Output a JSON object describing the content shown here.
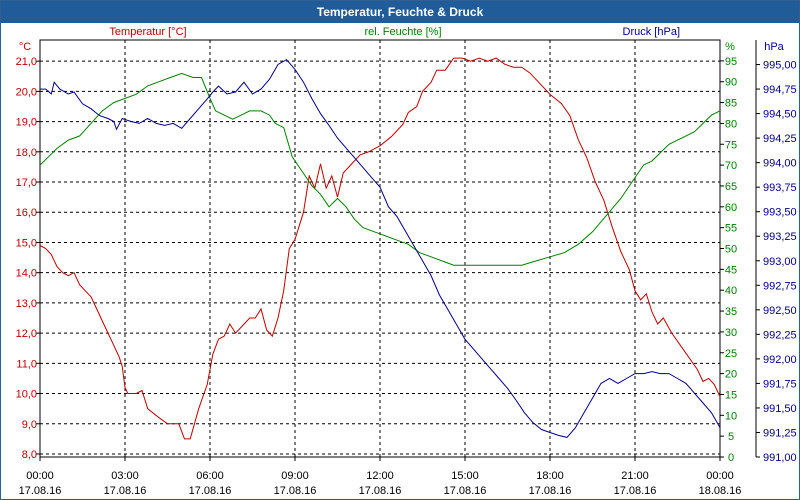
{
  "window": {
    "title": "Temperatur, Feuchte & Druck"
  },
  "chart_data": {
    "type": "line",
    "title": "Temperatur, Feuchte & Druck",
    "x": {
      "range_hours": [
        0,
        24
      ],
      "ticks": [
        {
          "h": 0,
          "time": "00:00",
          "date": "17.08.16"
        },
        {
          "h": 3,
          "time": "03:00",
          "date": "17.08.16"
        },
        {
          "h": 6,
          "time": "06:00",
          "date": "17.08.16"
        },
        {
          "h": 9,
          "time": "09:00",
          "date": "17.08.16"
        },
        {
          "h": 12,
          "time": "12:00",
          "date": "17.08.16"
        },
        {
          "h": 15,
          "time": "15:00",
          "date": "17.08.16"
        },
        {
          "h": 18,
          "time": "18:00",
          "date": "17.08.16"
        },
        {
          "h": 21,
          "time": "21:00",
          "date": "17.08.16"
        },
        {
          "h": 24,
          "time": "00:00",
          "date": "18.08.16"
        }
      ]
    },
    "axes": {
      "temperature": {
        "unit": "°C",
        "range": [
          7.9,
          21.7
        ],
        "color": "#c00000",
        "tick_labels": [
          "8,0",
          "9,0",
          "10,0",
          "11,0",
          "12,0",
          "13,0",
          "14,0",
          "15,0",
          "16,0",
          "17,0",
          "18,0",
          "19,0",
          "20,0",
          "21,0"
        ]
      },
      "humidity": {
        "unit": "%",
        "range": [
          0,
          100
        ],
        "color": "#008000",
        "tick_labels": [
          "0",
          "5",
          "10",
          "15",
          "20",
          "25",
          "30",
          "35",
          "40",
          "45",
          "50",
          "55",
          "60",
          "65",
          "70",
          "75",
          "80",
          "85",
          "90",
          "95"
        ]
      },
      "pressure": {
        "unit": "hPa",
        "range": [
          991.0,
          995.25
        ],
        "color": "#00008b",
        "tick_labels": [
          "991,00",
          "991,25",
          "991,50",
          "991,75",
          "992,00",
          "992,25",
          "992,50",
          "992,75",
          "993,00",
          "993,25",
          "993,50",
          "993,75",
          "994,00",
          "994,25",
          "994,50",
          "994,75",
          "995,00"
        ]
      }
    },
    "legend": [
      {
        "name": "Temperatur [°C]",
        "color": "#c00000"
      },
      {
        "name": "rel. Feuchte [%]",
        "color": "#008000"
      },
      {
        "name": "Druck [hPa]",
        "color": "#00008b"
      }
    ],
    "series": [
      {
        "name": "Temperatur",
        "axis": "temperature",
        "color": "#c00000",
        "points": [
          [
            0,
            14.9
          ],
          [
            0.2,
            14.8
          ],
          [
            0.4,
            14.6
          ],
          [
            0.6,
            14.2
          ],
          [
            0.8,
            14.0
          ],
          [
            1.0,
            13.9
          ],
          [
            1.2,
            14.0
          ],
          [
            1.4,
            13.6
          ],
          [
            1.6,
            13.4
          ],
          [
            1.8,
            13.2
          ],
          [
            2.0,
            12.8
          ],
          [
            2.2,
            12.4
          ],
          [
            2.4,
            12.0
          ],
          [
            2.6,
            11.6
          ],
          [
            2.8,
            11.2
          ],
          [
            2.9,
            10.9
          ],
          [
            3.0,
            10.2
          ],
          [
            3.1,
            10.0
          ],
          [
            3.4,
            10.0
          ],
          [
            3.6,
            10.1
          ],
          [
            3.8,
            9.5
          ],
          [
            4.2,
            9.2
          ],
          [
            4.5,
            9.0
          ],
          [
            4.9,
            9.0
          ],
          [
            5.1,
            8.5
          ],
          [
            5.3,
            8.5
          ],
          [
            5.6,
            9.5
          ],
          [
            5.9,
            10.3
          ],
          [
            6.1,
            11.3
          ],
          [
            6.3,
            11.8
          ],
          [
            6.5,
            11.9
          ],
          [
            6.7,
            12.3
          ],
          [
            6.9,
            12.0
          ],
          [
            7.1,
            12.2
          ],
          [
            7.4,
            12.5
          ],
          [
            7.6,
            12.5
          ],
          [
            7.8,
            12.8
          ],
          [
            8.0,
            12.1
          ],
          [
            8.2,
            11.9
          ],
          [
            8.4,
            12.5
          ],
          [
            8.6,
            13.4
          ],
          [
            8.8,
            14.8
          ],
          [
            9.0,
            15.1
          ],
          [
            9.3,
            16.0
          ],
          [
            9.5,
            17.2
          ],
          [
            9.7,
            16.8
          ],
          [
            9.9,
            17.6
          ],
          [
            10.1,
            16.8
          ],
          [
            10.3,
            17.2
          ],
          [
            10.5,
            16.5
          ],
          [
            10.7,
            17.3
          ],
          [
            11.0,
            17.6
          ],
          [
            11.3,
            17.9
          ],
          [
            11.6,
            18.0
          ],
          [
            12.0,
            18.2
          ],
          [
            12.4,
            18.5
          ],
          [
            12.8,
            18.9
          ],
          [
            13.0,
            19.3
          ],
          [
            13.3,
            19.5
          ],
          [
            13.5,
            20.0
          ],
          [
            13.8,
            20.3
          ],
          [
            14.0,
            20.7
          ],
          [
            14.3,
            20.7
          ],
          [
            14.6,
            21.1
          ],
          [
            14.9,
            21.1
          ],
          [
            15.2,
            21.0
          ],
          [
            15.5,
            21.1
          ],
          [
            15.8,
            21.0
          ],
          [
            16.1,
            21.1
          ],
          [
            16.4,
            20.9
          ],
          [
            16.7,
            20.8
          ],
          [
            17.0,
            20.8
          ],
          [
            17.3,
            20.6
          ],
          [
            17.6,
            20.3
          ],
          [
            18.0,
            19.9
          ],
          [
            18.4,
            19.6
          ],
          [
            18.7,
            19.2
          ],
          [
            19.0,
            18.4
          ],
          [
            19.3,
            17.8
          ],
          [
            19.6,
            17.0
          ],
          [
            19.9,
            16.4
          ],
          [
            20.2,
            15.5
          ],
          [
            20.5,
            14.7
          ],
          [
            20.8,
            14.1
          ],
          [
            21.0,
            13.4
          ],
          [
            21.2,
            13.1
          ],
          [
            21.4,
            13.3
          ],
          [
            21.6,
            12.7
          ],
          [
            21.8,
            12.3
          ],
          [
            22.0,
            12.5
          ],
          [
            22.3,
            12.0
          ],
          [
            22.6,
            11.6
          ],
          [
            22.9,
            11.2
          ],
          [
            23.2,
            10.8
          ],
          [
            23.4,
            10.4
          ],
          [
            23.6,
            10.5
          ],
          [
            23.8,
            10.3
          ],
          [
            24.0,
            9.9
          ]
        ]
      },
      {
        "name": "rel. Feuchte",
        "axis": "humidity",
        "color": "#008000",
        "points": [
          [
            0,
            70
          ],
          [
            0.3,
            72
          ],
          [
            0.6,
            74
          ],
          [
            1.0,
            76
          ],
          [
            1.4,
            77
          ],
          [
            1.8,
            80
          ],
          [
            2.2,
            83
          ],
          [
            2.6,
            85
          ],
          [
            3.0,
            86
          ],
          [
            3.4,
            87
          ],
          [
            3.8,
            89
          ],
          [
            4.2,
            90
          ],
          [
            4.6,
            91
          ],
          [
            5.0,
            92
          ],
          [
            5.4,
            91
          ],
          [
            5.7,
            91
          ],
          [
            6.0,
            86
          ],
          [
            6.2,
            83
          ],
          [
            6.5,
            82
          ],
          [
            6.8,
            81
          ],
          [
            7.1,
            82
          ],
          [
            7.4,
            83
          ],
          [
            7.8,
            83
          ],
          [
            8.1,
            82
          ],
          [
            8.3,
            80
          ],
          [
            8.6,
            79
          ],
          [
            8.9,
            72
          ],
          [
            9.3,
            68
          ],
          [
            9.6,
            65
          ],
          [
            9.9,
            63
          ],
          [
            10.2,
            60
          ],
          [
            10.5,
            62
          ],
          [
            10.8,
            60
          ],
          [
            11.1,
            57
          ],
          [
            11.4,
            55
          ],
          [
            11.8,
            54
          ],
          [
            12.2,
            53
          ],
          [
            12.6,
            52
          ],
          [
            13.0,
            51
          ],
          [
            13.4,
            49
          ],
          [
            13.8,
            48
          ],
          [
            14.2,
            47
          ],
          [
            14.6,
            46
          ],
          [
            15.0,
            46
          ],
          [
            15.5,
            46
          ],
          [
            16.0,
            46
          ],
          [
            16.5,
            46
          ],
          [
            17.0,
            46
          ],
          [
            17.5,
            47
          ],
          [
            18.0,
            48
          ],
          [
            18.5,
            49
          ],
          [
            19.0,
            51
          ],
          [
            19.5,
            54
          ],
          [
            20.0,
            58
          ],
          [
            20.5,
            62
          ],
          [
            21.0,
            67
          ],
          [
            21.3,
            70
          ],
          [
            21.6,
            71
          ],
          [
            21.9,
            73
          ],
          [
            22.2,
            75
          ],
          [
            22.5,
            76
          ],
          [
            22.8,
            77
          ],
          [
            23.1,
            78
          ],
          [
            23.4,
            80
          ],
          [
            23.7,
            82
          ],
          [
            24.0,
            83
          ]
        ]
      },
      {
        "name": "Druck",
        "axis": "pressure",
        "color": "#00008b",
        "points": [
          [
            0,
            994.75
          ],
          [
            0.2,
            994.75
          ],
          [
            0.4,
            994.7
          ],
          [
            0.5,
            994.82
          ],
          [
            0.7,
            994.75
          ],
          [
            1.0,
            994.7
          ],
          [
            1.2,
            994.72
          ],
          [
            1.5,
            994.6
          ],
          [
            1.8,
            994.55
          ],
          [
            2.1,
            994.48
          ],
          [
            2.4,
            994.45
          ],
          [
            2.6,
            994.42
          ],
          [
            2.7,
            994.34
          ],
          [
            2.9,
            994.45
          ],
          [
            3.2,
            994.42
          ],
          [
            3.5,
            994.4
          ],
          [
            3.8,
            994.45
          ],
          [
            4.1,
            994.4
          ],
          [
            4.4,
            994.38
          ],
          [
            4.7,
            994.4
          ],
          [
            5.0,
            994.35
          ],
          [
            5.3,
            994.45
          ],
          [
            5.6,
            994.55
          ],
          [
            5.9,
            994.65
          ],
          [
            6.1,
            994.72
          ],
          [
            6.3,
            994.78
          ],
          [
            6.6,
            994.7
          ],
          [
            6.9,
            994.72
          ],
          [
            7.2,
            994.82
          ],
          [
            7.5,
            994.7
          ],
          [
            7.8,
            994.75
          ],
          [
            8.1,
            994.85
          ],
          [
            8.4,
            995.0
          ],
          [
            8.7,
            995.05
          ],
          [
            9.0,
            994.95
          ],
          [
            9.3,
            994.82
          ],
          [
            9.6,
            994.65
          ],
          [
            9.9,
            994.5
          ],
          [
            10.2,
            994.38
          ],
          [
            10.5,
            994.25
          ],
          [
            10.8,
            994.15
          ],
          [
            11.1,
            994.05
          ],
          [
            11.4,
            993.95
          ],
          [
            11.7,
            993.85
          ],
          [
            12.0,
            993.75
          ],
          [
            12.3,
            993.55
          ],
          [
            12.6,
            993.45
          ],
          [
            12.9,
            993.3
          ],
          [
            13.2,
            993.15
          ],
          [
            13.5,
            993.0
          ],
          [
            13.8,
            992.85
          ],
          [
            14.1,
            992.65
          ],
          [
            14.4,
            992.5
          ],
          [
            14.7,
            992.35
          ],
          [
            15.0,
            992.2
          ],
          [
            15.3,
            992.1
          ],
          [
            15.6,
            992.0
          ],
          [
            15.9,
            991.9
          ],
          [
            16.2,
            991.8
          ],
          [
            16.5,
            991.7
          ],
          [
            16.8,
            991.58
          ],
          [
            17.1,
            991.45
          ],
          [
            17.4,
            991.35
          ],
          [
            17.7,
            991.28
          ],
          [
            18.0,
            991.25
          ],
          [
            18.3,
            991.22
          ],
          [
            18.6,
            991.2
          ],
          [
            18.9,
            991.3
          ],
          [
            19.2,
            991.45
          ],
          [
            19.5,
            991.6
          ],
          [
            19.8,
            991.75
          ],
          [
            20.1,
            991.8
          ],
          [
            20.4,
            991.75
          ],
          [
            20.7,
            991.8
          ],
          [
            21.0,
            991.85
          ],
          [
            21.3,
            991.85
          ],
          [
            21.6,
            991.87
          ],
          [
            21.9,
            991.85
          ],
          [
            22.2,
            991.85
          ],
          [
            22.5,
            991.8
          ],
          [
            22.8,
            991.75
          ],
          [
            23.1,
            991.65
          ],
          [
            23.4,
            991.55
          ],
          [
            23.7,
            991.45
          ],
          [
            24.0,
            991.3
          ]
        ]
      }
    ]
  }
}
